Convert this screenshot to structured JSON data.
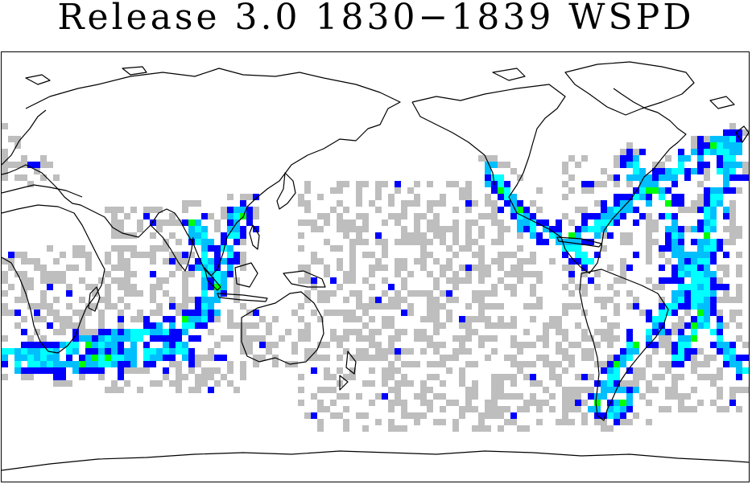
{
  "title": "Release 3.0 1830−1839 WSPD",
  "colors": {
    "background": "#ffffff",
    "coastline": "#000000",
    "low_density": "#bebebe",
    "medium_density": "#0000ff",
    "high_density": "#00bfff",
    "very_high_density": "#00ffff",
    "peak_density": "#00ff00"
  }
}
